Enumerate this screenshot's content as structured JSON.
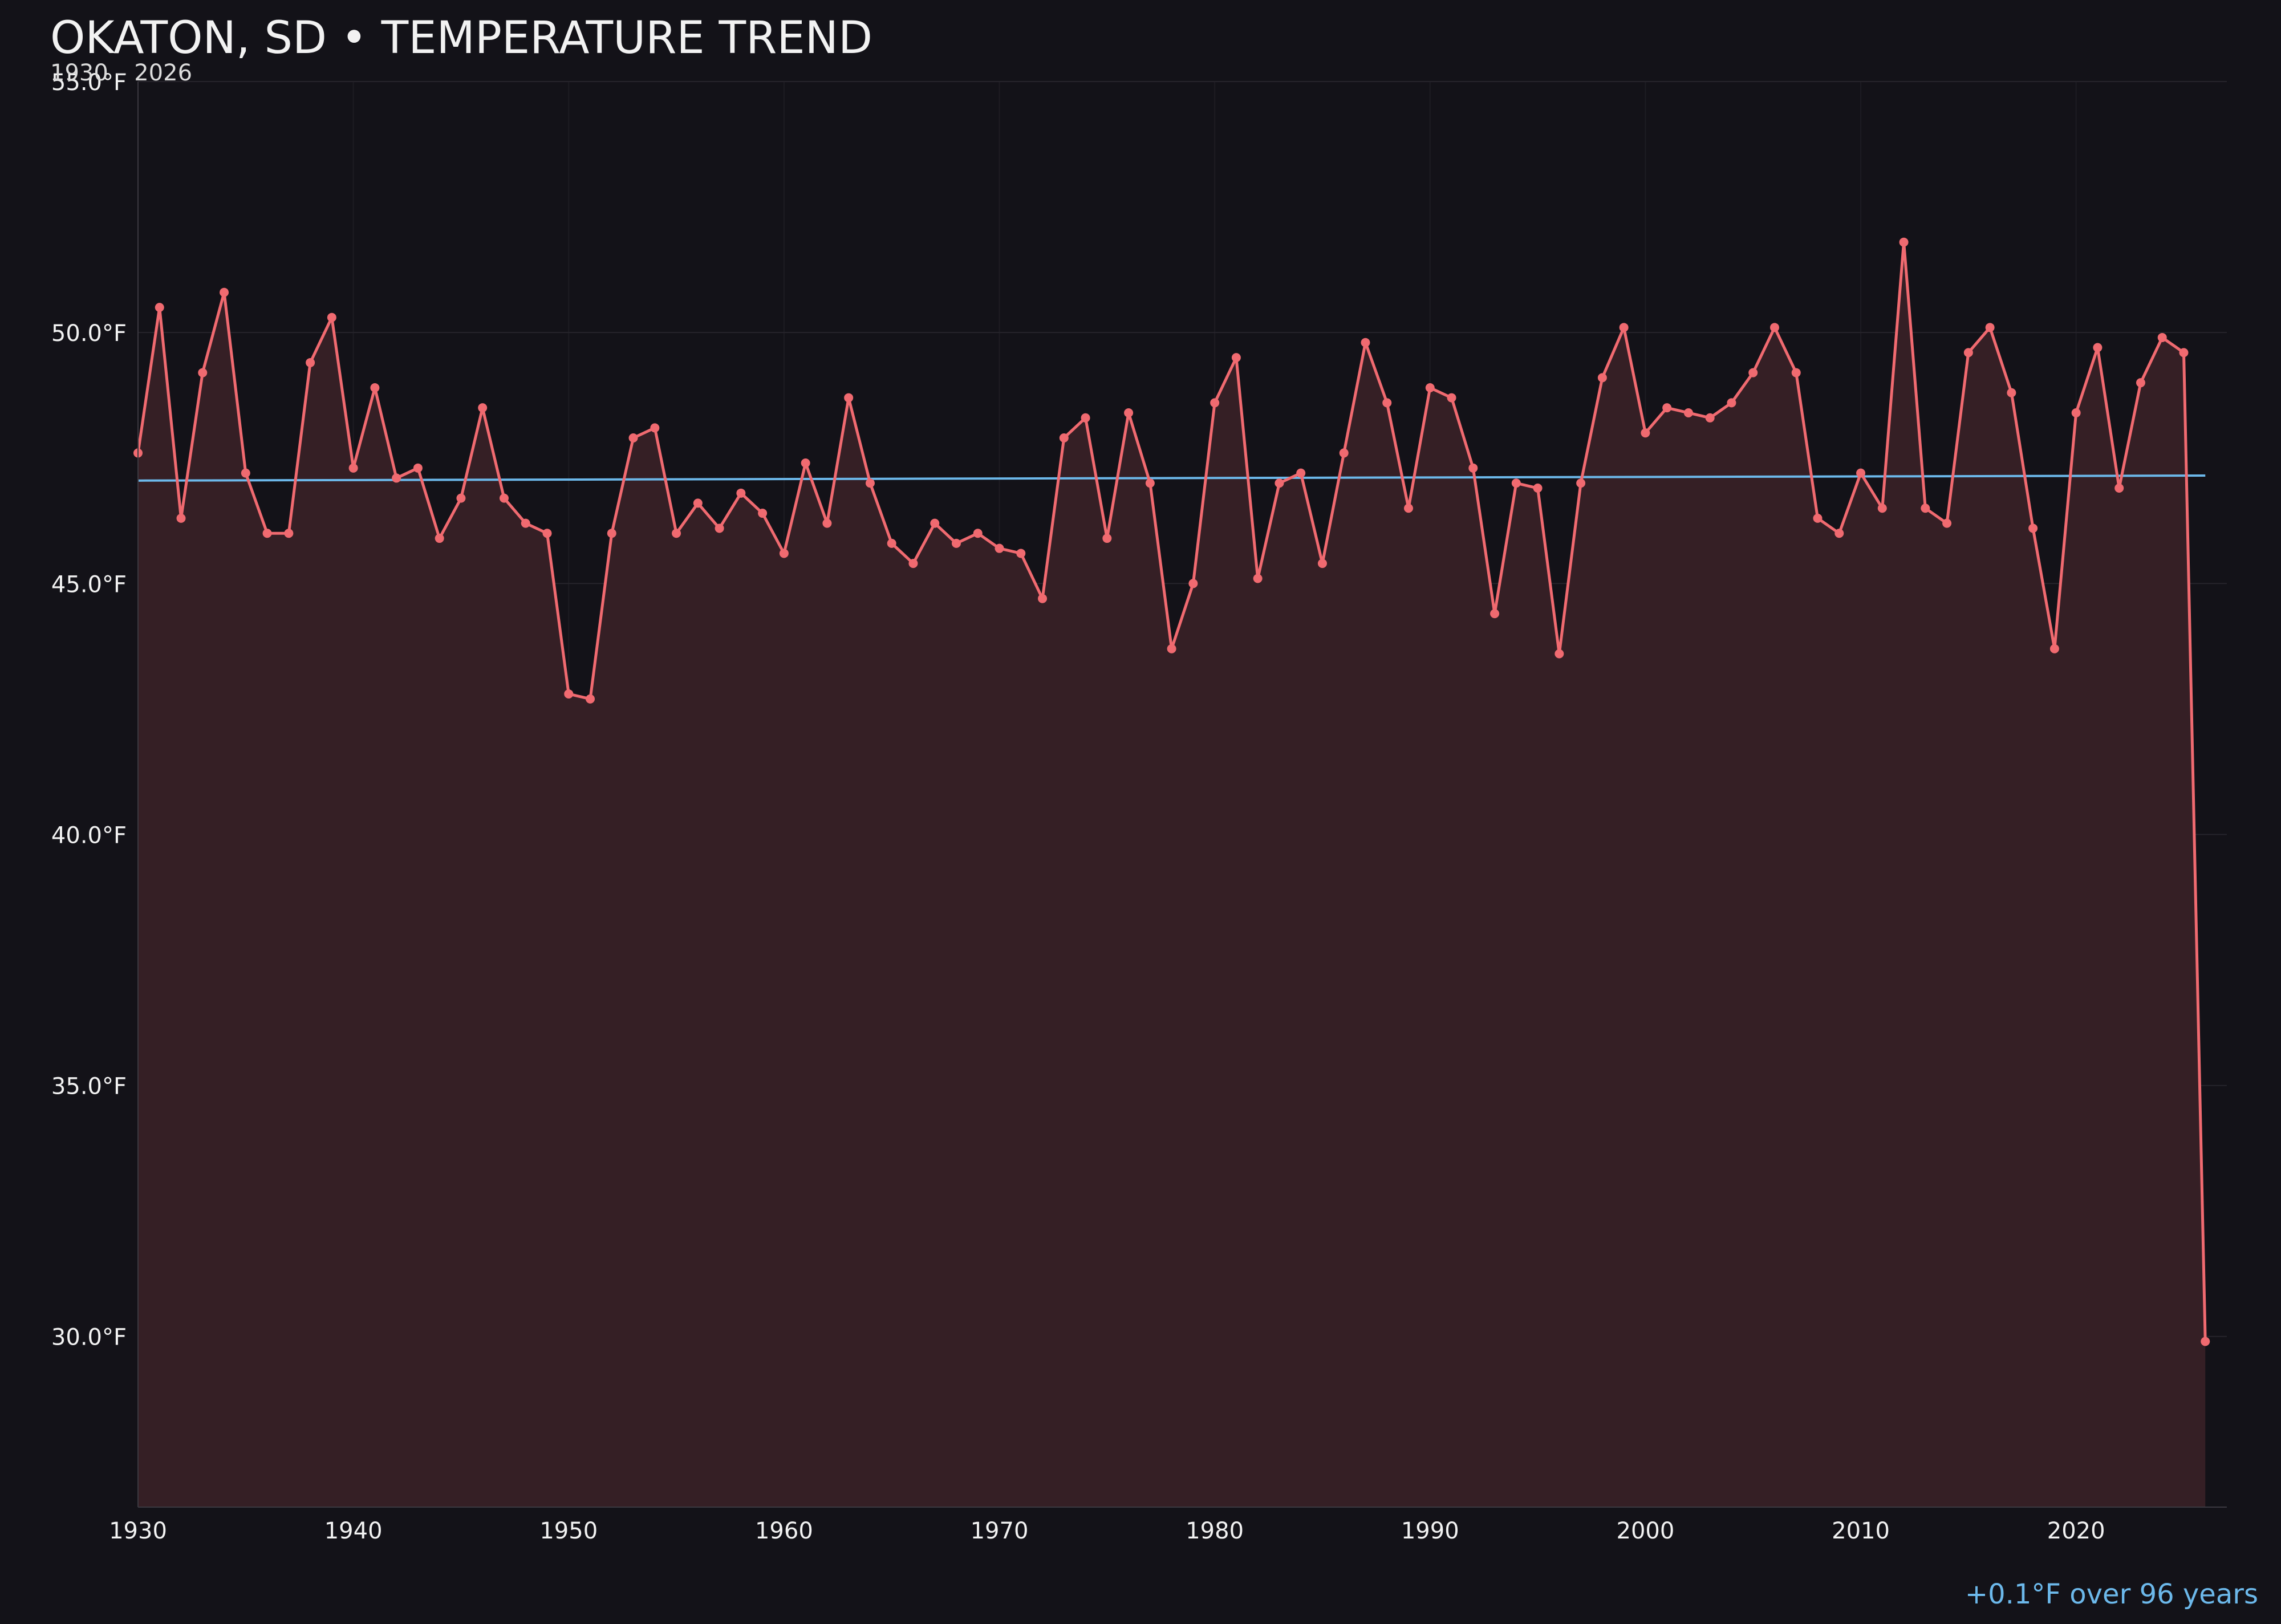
{
  "colors": {
    "background": "#131218",
    "series": "#f06a70",
    "area_fill": "#351f25",
    "trend": "#6cb8ea",
    "grid": "#26242b",
    "text": "#f2f2f2"
  },
  "chart_data": {
    "type": "line",
    "title": "OKATON, SD • TEMPERATURE TREND",
    "subtitle": "1930 – 2026",
    "annotation": "+0.1°F over 96 years",
    "xlabel": "",
    "ylabel": "",
    "xlim": [
      1930,
      2027
    ],
    "ylim": [
      26.6,
      55.0
    ],
    "yticks": [
      30,
      35,
      40,
      45,
      50,
      55
    ],
    "ytick_labels": [
      "30.0°F",
      "35.0°F",
      "40.0°F",
      "45.0°F",
      "50.0°F",
      "55.0°F"
    ],
    "xticks": [
      1930,
      1940,
      1950,
      1960,
      1970,
      1980,
      1990,
      2000,
      2010,
      2020
    ],
    "xtick_labels": [
      "1930",
      "1940",
      "1950",
      "1960",
      "1970",
      "1980",
      "1990",
      "2000",
      "2010",
      "2020"
    ],
    "grid": true,
    "series": [
      {
        "values": [
          [
            1930,
            47.6
          ],
          [
            1931,
            50.5
          ],
          [
            1932,
            46.3
          ],
          [
            1933,
            49.2
          ],
          [
            1934,
            50.8
          ],
          [
            1935,
            47.2
          ],
          [
            1936,
            46.0
          ],
          [
            1937,
            46.0
          ],
          [
            1938,
            49.4
          ],
          [
            1939,
            50.3
          ],
          [
            1940,
            47.3
          ],
          [
            1941,
            48.9
          ],
          [
            1942,
            47.1
          ],
          [
            1943,
            47.3
          ],
          [
            1944,
            45.9
          ],
          [
            1945,
            46.7
          ],
          [
            1946,
            48.5
          ],
          [
            1947,
            46.7
          ],
          [
            1948,
            46.2
          ],
          [
            1949,
            46.0
          ],
          [
            1950,
            42.8
          ],
          [
            1951,
            42.7
          ],
          [
            1952,
            46.0
          ],
          [
            1953,
            47.9
          ],
          [
            1954,
            48.1
          ],
          [
            1955,
            46.0
          ],
          [
            1956,
            46.6
          ],
          [
            1957,
            46.1
          ],
          [
            1958,
            46.8
          ],
          [
            1959,
            46.4
          ],
          [
            1960,
            45.6
          ],
          [
            1961,
            47.4
          ],
          [
            1962,
            46.2
          ],
          [
            1963,
            48.7
          ],
          [
            1964,
            47.0
          ],
          [
            1965,
            45.8
          ],
          [
            1966,
            45.4
          ],
          [
            1967,
            46.2
          ],
          [
            1968,
            45.8
          ],
          [
            1969,
            46.0
          ],
          [
            1970,
            45.7
          ],
          [
            1971,
            45.6
          ],
          [
            1972,
            44.7
          ],
          [
            1973,
            47.9
          ],
          [
            1974,
            48.3
          ],
          [
            1975,
            45.9
          ],
          [
            1976,
            48.4
          ],
          [
            1977,
            47.0
          ],
          [
            1978,
            43.7
          ],
          [
            1979,
            45.0
          ],
          [
            1980,
            48.6
          ],
          [
            1981,
            49.5
          ],
          [
            1982,
            45.1
          ],
          [
            1983,
            47.0
          ],
          [
            1984,
            47.2
          ],
          [
            1985,
            45.4
          ],
          [
            1986,
            47.6
          ],
          [
            1987,
            49.8
          ],
          [
            1988,
            48.6
          ],
          [
            1989,
            46.5
          ],
          [
            1990,
            48.9
          ],
          [
            1991,
            48.7
          ],
          [
            1992,
            47.3
          ],
          [
            1993,
            44.4
          ],
          [
            1994,
            47.0
          ],
          [
            1995,
            46.9
          ],
          [
            1996,
            43.6
          ],
          [
            1997,
            47.0
          ],
          [
            1998,
            49.1
          ],
          [
            1999,
            50.1
          ],
          [
            2000,
            48.0
          ],
          [
            2001,
            48.5
          ],
          [
            2002,
            48.4
          ],
          [
            2003,
            48.3
          ],
          [
            2004,
            48.6
          ],
          [
            2005,
            49.2
          ],
          [
            2006,
            50.1
          ],
          [
            2007,
            49.2
          ],
          [
            2008,
            46.3
          ],
          [
            2009,
            46.0
          ],
          [
            2010,
            47.2
          ],
          [
            2011,
            46.5
          ],
          [
            2012,
            51.8
          ],
          [
            2013,
            46.5
          ],
          [
            2014,
            46.2
          ],
          [
            2015,
            49.6
          ],
          [
            2016,
            50.1
          ],
          [
            2017,
            48.8
          ],
          [
            2018,
            46.1
          ],
          [
            2019,
            43.7
          ],
          [
            2020,
            48.4
          ],
          [
            2021,
            49.7
          ],
          [
            2022,
            46.9
          ],
          [
            2023,
            49.0
          ],
          [
            2024,
            49.9
          ],
          [
            2025,
            49.6
          ],
          [
            2026,
            29.9
          ]
        ]
      }
    ],
    "trend_line": [
      [
        1930,
        47.05
      ],
      [
        2026,
        47.15
      ]
    ]
  }
}
